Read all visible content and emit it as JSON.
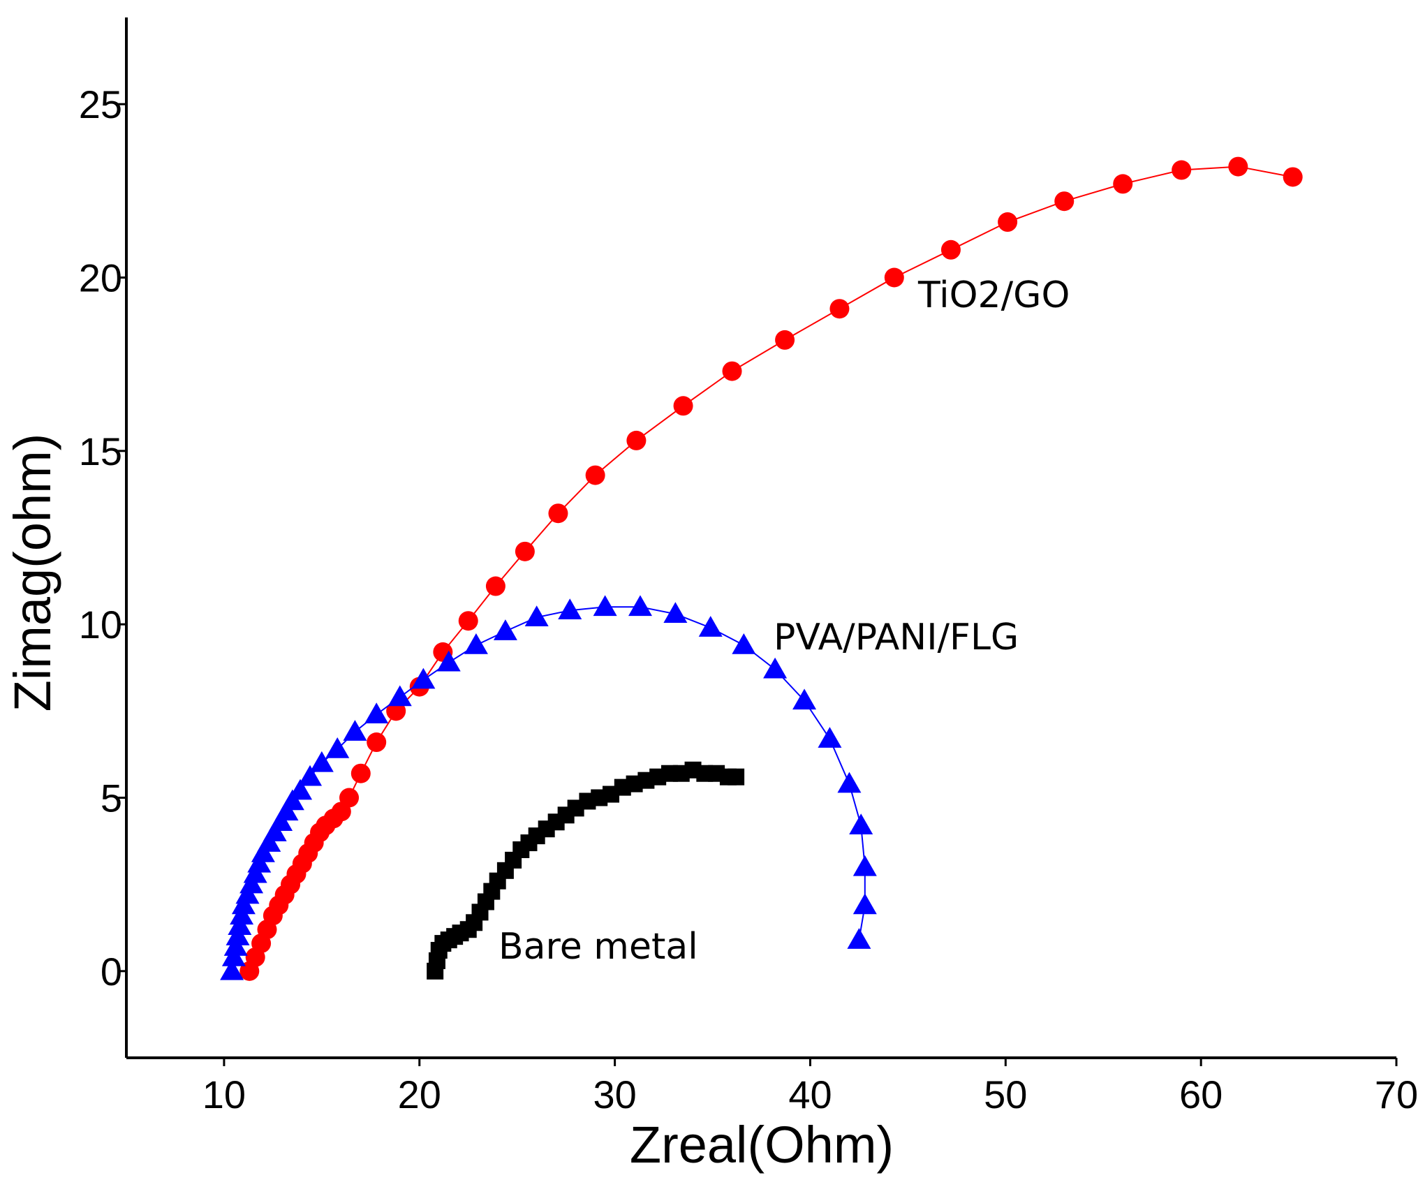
{
  "chart_data": {
    "type": "scatter",
    "title": "",
    "xlabel": "Zreal(Ohm)",
    "ylabel": "Zimag(ohm)",
    "xlim": [
      5,
      70
    ],
    "ylim": [
      -2.5,
      27.5
    ],
    "x_ticks": [
      10,
      20,
      30,
      40,
      50,
      60,
      70
    ],
    "y_ticks": [
      0,
      5,
      10,
      15,
      20,
      25
    ],
    "grid": false,
    "series": [
      {
        "name": "TiO2/GO",
        "color": "#ff0000",
        "marker": "circle",
        "connected": true,
        "x": [
          11.3,
          11.6,
          11.9,
          12.2,
          12.5,
          12.8,
          13.1,
          13.4,
          13.7,
          14.0,
          14.3,
          14.6,
          14.9,
          15.2,
          15.6,
          16.0,
          16.4,
          17.0,
          17.8,
          18.8,
          20.0,
          21.2,
          22.5,
          23.9,
          25.4,
          27.1,
          29.0,
          31.1,
          33.5,
          36.0,
          38.7,
          41.5,
          44.3,
          47.2,
          50.1,
          53.0,
          56.0,
          59.0,
          61.9,
          64.7
        ],
        "y": [
          0.0,
          0.4,
          0.8,
          1.2,
          1.6,
          1.9,
          2.2,
          2.5,
          2.8,
          3.1,
          3.4,
          3.7,
          4.0,
          4.2,
          4.4,
          4.6,
          5.0,
          5.7,
          6.6,
          7.5,
          8.2,
          9.2,
          10.1,
          11.1,
          12.1,
          13.2,
          14.3,
          15.3,
          16.3,
          17.3,
          18.2,
          19.1,
          20.0,
          20.8,
          21.6,
          22.2,
          22.7,
          23.1,
          23.2,
          22.9
        ]
      },
      {
        "name": "PVA/PANI/FLG",
        "color": "#0000ff",
        "marker": "triangle",
        "connected": true,
        "x": [
          10.4,
          10.5,
          10.6,
          10.7,
          10.8,
          10.9,
          11.0,
          11.2,
          11.4,
          11.6,
          11.8,
          12.0,
          12.3,
          12.6,
          12.9,
          13.2,
          13.5,
          13.9,
          14.4,
          15.0,
          15.8,
          16.7,
          17.8,
          19.0,
          20.2,
          21.5,
          22.9,
          24.4,
          26.0,
          27.7,
          29.5,
          31.3,
          33.1,
          34.9,
          36.6,
          38.2,
          39.7,
          41.0,
          42.0,
          42.6,
          42.8,
          42.8,
          42.5
        ],
        "y": [
          0.0,
          0.4,
          0.7,
          1.0,
          1.3,
          1.6,
          1.9,
          2.2,
          2.5,
          2.8,
          3.1,
          3.4,
          3.7,
          4.0,
          4.3,
          4.6,
          4.9,
          5.2,
          5.6,
          6.0,
          6.4,
          6.9,
          7.4,
          7.9,
          8.4,
          8.9,
          9.4,
          9.8,
          10.2,
          10.4,
          10.5,
          10.5,
          10.3,
          9.9,
          9.4,
          8.7,
          7.8,
          6.7,
          5.4,
          4.2,
          3.0,
          1.9,
          0.9
        ]
      },
      {
        "name": "Bare metal",
        "color": "#000000",
        "marker": "square",
        "connected": false,
        "x": [
          20.8,
          20.9,
          21.0,
          21.2,
          21.5,
          21.8,
          22.1,
          22.5,
          22.8,
          23.1,
          23.4,
          23.7,
          24.0,
          24.4,
          24.8,
          25.2,
          25.6,
          26.0,
          26.5,
          27.0,
          27.5,
          28.0,
          28.6,
          29.2,
          29.8,
          30.4,
          31.0,
          31.6,
          32.2,
          32.8,
          33.4,
          34.0,
          34.6,
          35.2,
          35.8,
          36.2
        ],
        "y": [
          0.0,
          0.3,
          0.6,
          0.8,
          0.9,
          1.0,
          1.1,
          1.2,
          1.4,
          1.7,
          2.0,
          2.3,
          2.6,
          2.9,
          3.2,
          3.5,
          3.7,
          3.9,
          4.1,
          4.3,
          4.5,
          4.7,
          4.9,
          5.0,
          5.1,
          5.3,
          5.4,
          5.5,
          5.6,
          5.7,
          5.7,
          5.8,
          5.7,
          5.7,
          5.6,
          5.6
        ]
      }
    ],
    "annotations": [
      {
        "text": "TiO2/GO",
        "series": "TiO2/GO"
      },
      {
        "text": "PVA/PANI/FLG",
        "series": "PVA/PANI/FLG"
      },
      {
        "text": "Bare metal",
        "series": "Bare metal"
      }
    ]
  }
}
